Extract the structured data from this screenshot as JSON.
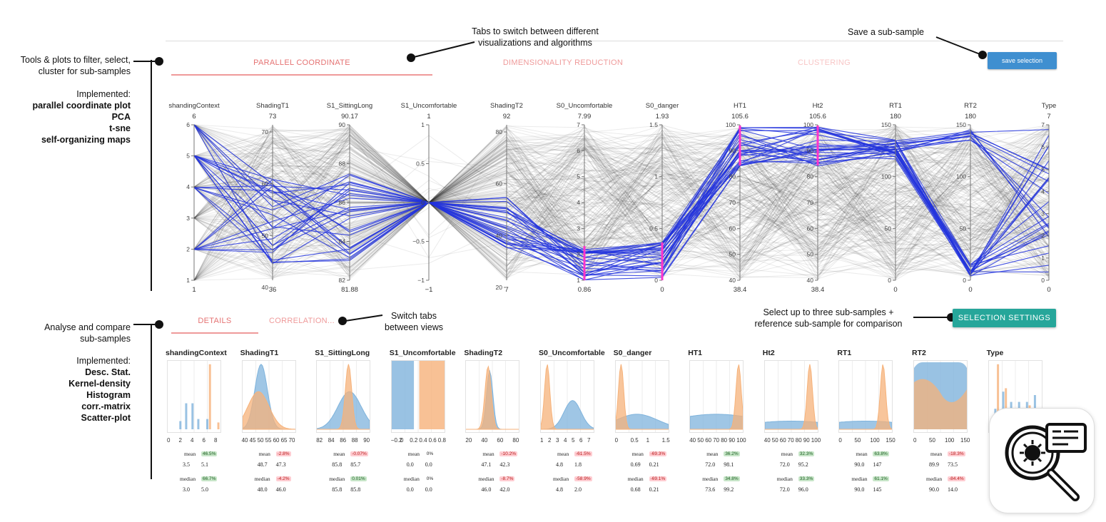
{
  "annotations": {
    "tabs_hint": [
      "Tabs to switch between different",
      "visualizations and algorithms"
    ],
    "save_hint": "Save a  sub-sample",
    "tools_hint": [
      "Tools & plots to filter, select,",
      "cluster for  sub-samples"
    ],
    "implemented_label": "Implemented:",
    "implemented_top": [
      "parallel coordinate plot",
      "PCA",
      "t-sne",
      "self-organizing maps"
    ],
    "switch_hint": [
      "Switch tabs",
      "between views"
    ],
    "select_hint": [
      "Select up to three sub-samples  +",
      "reference  sub-sample for comparison"
    ],
    "analyse_hint": [
      "Analyse and compare",
      "sub-samples"
    ],
    "implemented_bottom": [
      "Desc. Stat.",
      "Kernel-density",
      "Histogram",
      "corr.-matrix",
      "Scatter-plot"
    ]
  },
  "top_tabs": [
    "PARALLEL COORDINATE",
    "DIMENSIONALITY REDUCTION",
    "CLUSTERING"
  ],
  "save_button": "save selection",
  "bottom_tabs": [
    "DETAILS",
    "CORRELATION..."
  ],
  "selection_settings_button": "SELECTION SETTINGS",
  "colors": {
    "accent": "#e57373",
    "blue_lines": "#2233dd",
    "brush": "#ff33cc",
    "button_blue": "#3f8fd0",
    "button_teal": "#26a69a",
    "kde_blue": "#7fb3dc",
    "kde_orange": "#f6b27a"
  },
  "axes": [
    {
      "name": "shandingContext",
      "max": "6",
      "min": "1",
      "ticks": [
        "6",
        "5",
        "4",
        "3",
        "2",
        "1"
      ]
    },
    {
      "name": "ShadingT1",
      "max": "73",
      "min": "36",
      "ticks": [
        "70",
        "60",
        "50",
        "40"
      ]
    },
    {
      "name": "S1_SittingLong",
      "max": "90.17",
      "min": "81.88",
      "ticks": [
        "90",
        "88",
        "86",
        "84",
        "82"
      ]
    },
    {
      "name": "S1_Uncomfortable",
      "max": "1",
      "min": "−1",
      "ticks": [
        "1",
        "0.5",
        "0",
        "−0.5",
        "−1"
      ]
    },
    {
      "name": "ShadingT2",
      "max": "92",
      "min": "7",
      "ticks": [
        "80",
        "60",
        "40",
        "20"
      ]
    },
    {
      "name": "S0_Uncomfortable",
      "max": "7.99",
      "min": "0.86",
      "ticks": [
        "7",
        "6",
        "5",
        "4",
        "3",
        "2",
        "1"
      ]
    },
    {
      "name": "S0_danger",
      "max": "1.93",
      "min": "0",
      "ticks": [
        "1.5",
        "1",
        "0.5",
        "0"
      ]
    },
    {
      "name": "HT1",
      "max": "105.6",
      "min": "38.4",
      "ticks": [
        "100",
        "90",
        "80",
        "70",
        "60",
        "50",
        "40"
      ]
    },
    {
      "name": "Ht2",
      "max": "105.6",
      "min": "38.4",
      "ticks": [
        "100",
        "90",
        "80",
        "70",
        "60",
        "50",
        "40"
      ]
    },
    {
      "name": "RT1",
      "max": "180",
      "min": "0",
      "ticks": [
        "150",
        "100",
        "50",
        "0"
      ]
    },
    {
      "name": "RT2",
      "max": "180",
      "min": "0",
      "ticks": [
        "150",
        "100",
        "50",
        "0"
      ]
    },
    {
      "name": "Type",
      "max": "7",
      "min": "0",
      "ticks": [
        "7",
        "6",
        "5",
        "4",
        "3",
        "2",
        "1",
        "0"
      ]
    }
  ],
  "detail_charts": [
    {
      "title": "shandingContext",
      "xticks": [
        "0",
        "2",
        "4",
        "6",
        "8"
      ],
      "mean": [
        "3.5",
        "5.1"
      ],
      "mean_delta": "46.5%",
      "mean_sign": "pos",
      "median": [
        "3.0",
        "5.0"
      ],
      "median_delta": "66.7%",
      "median_sign": "pos"
    },
    {
      "title": "ShadingT1",
      "xticks": [
        "40",
        "45",
        "50",
        "55",
        "60",
        "65",
        "70"
      ],
      "mean": [
        "48.7",
        "47.3"
      ],
      "mean_delta": "-2.8%",
      "mean_sign": "neg",
      "median": [
        "48.0",
        "46.0"
      ],
      "median_delta": "-4.2%",
      "median_sign": "neg"
    },
    {
      "title": "S1_SittingLong",
      "xticks": [
        "82",
        "84",
        "86",
        "88",
        "90"
      ],
      "mean": [
        "85.8",
        "85.7"
      ],
      "mean_delta": "-0.07%",
      "mean_sign": "neg",
      "median": [
        "85.8",
        "85.8"
      ],
      "median_delta": "0.01%",
      "median_sign": "pos"
    },
    {
      "title": "S1_Uncomfortable",
      "xticks": [
        "−0.2",
        "0",
        "0.2",
        "0.4",
        "0.6",
        "0.8"
      ],
      "mean": [
        "0.0",
        "0.0"
      ],
      "mean_delta": "0%",
      "mean_sign": "zero",
      "median": [
        "0.0",
        "0.0"
      ],
      "median_delta": "0%",
      "median_sign": "zero"
    },
    {
      "title": "ShadingT2",
      "xticks": [
        "20",
        "40",
        "60",
        "80"
      ],
      "mean": [
        "47.1",
        "42.3"
      ],
      "mean_delta": "-10.2%",
      "mean_sign": "neg",
      "median": [
        "46.0",
        "42.0"
      ],
      "median_delta": "-8.7%",
      "median_sign": "neg"
    },
    {
      "title": "S0_Uncomfortable",
      "xticks": [
        "1",
        "2",
        "3",
        "4",
        "5",
        "6",
        "7"
      ],
      "mean": [
        "4.8",
        "1.8"
      ],
      "mean_delta": "-61.5%",
      "mean_sign": "neg",
      "median": [
        "4.8",
        "2.0"
      ],
      "median_delta": "-58.9%",
      "median_sign": "neg"
    },
    {
      "title": "S0_danger",
      "xticks": [
        "0",
        "0.5",
        "1",
        "1.5"
      ],
      "mean": [
        "0.69",
        "0.21"
      ],
      "mean_delta": "-69.3%",
      "mean_sign": "neg",
      "median": [
        "0.68",
        "0.21"
      ],
      "median_delta": "-69.1%",
      "median_sign": "neg"
    },
    {
      "title": "HT1",
      "xticks": [
        "40",
        "50",
        "60",
        "70",
        "80",
        "90",
        "100"
      ],
      "mean": [
        "72.0",
        "98.1"
      ],
      "mean_delta": "36.2%",
      "mean_sign": "pos",
      "median": [
        "73.6",
        "99.2"
      ],
      "median_delta": "34.8%",
      "median_sign": "pos"
    },
    {
      "title": "Ht2",
      "xticks": [
        "40",
        "50",
        "60",
        "70",
        "80",
        "90",
        "100"
      ],
      "mean": [
        "72.0",
        "95.2"
      ],
      "mean_delta": "32.3%",
      "mean_sign": "pos",
      "median": [
        "72.0",
        "96.0"
      ],
      "median_delta": "33.3%",
      "median_sign": "pos"
    },
    {
      "title": "RT1",
      "xticks": [
        "0",
        "50",
        "100",
        "150"
      ],
      "mean": [
        "90.0",
        "147"
      ],
      "mean_delta": "63.8%",
      "mean_sign": "pos",
      "median": [
        "90.0",
        "145"
      ],
      "median_delta": "61.1%",
      "median_sign": "pos"
    },
    {
      "title": "RT2",
      "xticks": [
        "0",
        "50",
        "100",
        "150"
      ],
      "mean": [
        "89.9",
        "73.5"
      ],
      "mean_delta": "-18.3%",
      "mean_sign": "neg",
      "median": [
        "90.0",
        "14.0"
      ],
      "median_delta": "-84.4%",
      "median_sign": "neg"
    },
    {
      "title": "Type",
      "xticks": [],
      "mean": [],
      "mean_delta": "",
      "mean_sign": "zero",
      "median": [],
      "median_delta": "",
      "median_sign": "zero"
    }
  ],
  "stat_labels": {
    "mean": "mean",
    "median": "median"
  },
  "logo_icon": "magnifier-virus-document-icon"
}
